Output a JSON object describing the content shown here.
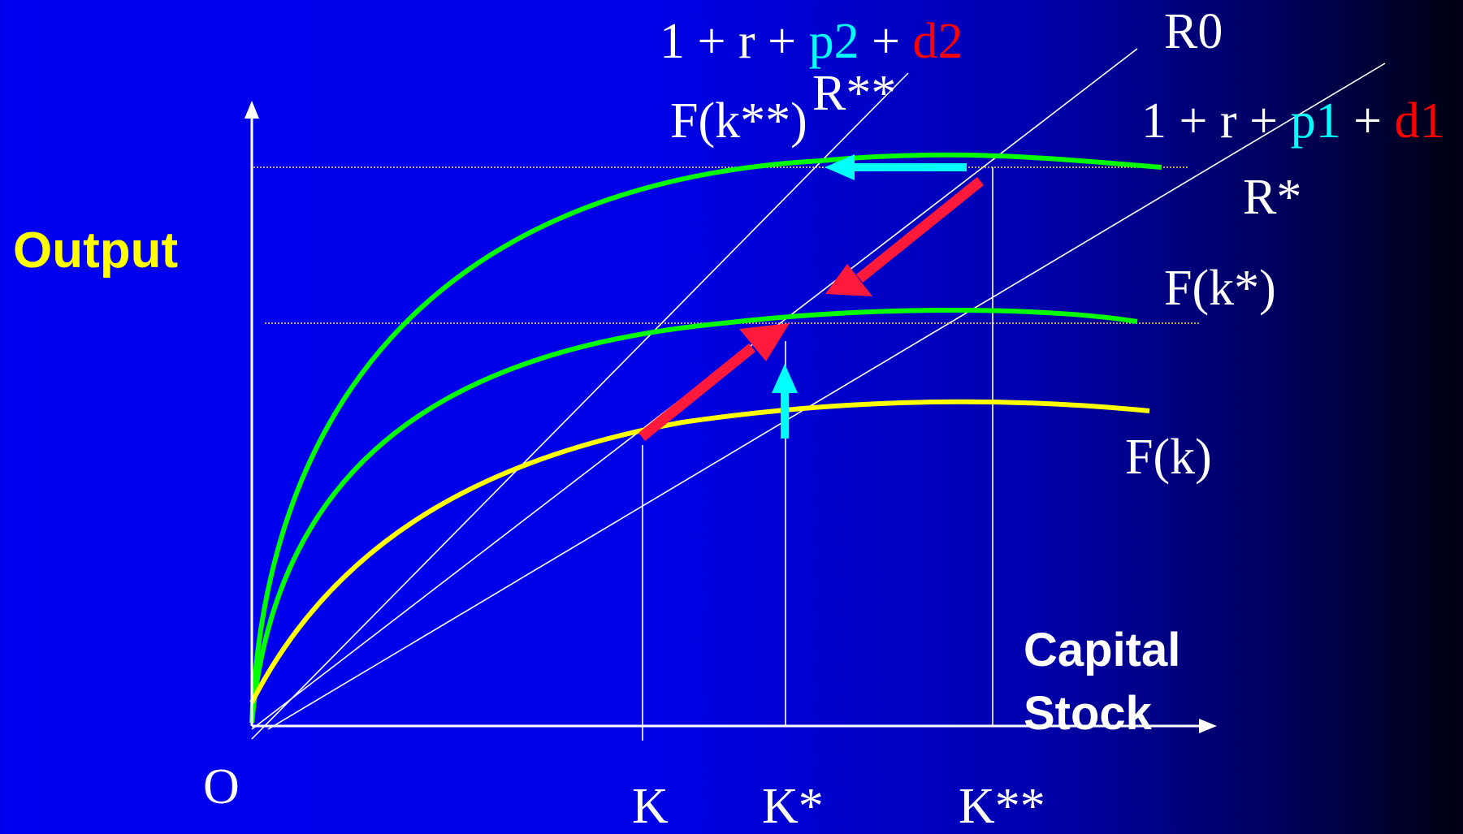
{
  "colors": {
    "background_left": "#0000f0",
    "background_right": "#000010",
    "axis": "#ffffff",
    "frontier_high": "#00ff00",
    "frontier_mid": "#00ff00",
    "frontier_base": "#ffff00",
    "arrow_red": "#ff1a3c",
    "arrow_cyan": "#00ffff",
    "guide_dotted": "#ffd84a"
  },
  "labels": {
    "y_axis": "Output",
    "x_axis_line1": "Capital",
    "x_axis_line2": "Stock",
    "origin": "O",
    "fk": "F(k)",
    "fk_star": "F(k*)",
    "fk_dstar": "F(k**)",
    "r0": "R0",
    "r_star": "R*",
    "r_dstar": "R**",
    "k": "K",
    "k_star": "K*",
    "k_dstar": "K**",
    "rate2": {
      "a": "1 + r + ",
      "p": "p2",
      "b": " + ",
      "d": "d2"
    },
    "rate1": {
      "a": "1 + r + ",
      "p": "p1",
      "b": " + ",
      "d": "d1"
    }
  },
  "icons": [
    "red-arrow-icon",
    "cyan-arrow-icon",
    "axis-arrowhead-icon"
  ]
}
